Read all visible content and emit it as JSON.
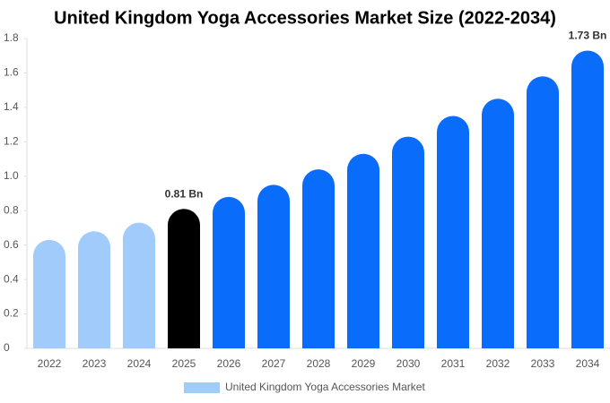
{
  "chart_data": {
    "type": "bar",
    "title": "United Kingdom Yoga Accessories Market Size (2022-2034)",
    "categories": [
      "2022",
      "2023",
      "2024",
      "2025",
      "2026",
      "2027",
      "2028",
      "2029",
      "2030",
      "2031",
      "2032",
      "2033",
      "2034"
    ],
    "series": [
      {
        "name": "United Kingdom Yoga Accessories Market",
        "color": "#a0cbfb",
        "values": [
          0.63,
          0.68,
          0.73,
          0.81,
          0.88,
          0.95,
          1.04,
          1.13,
          1.23,
          1.35,
          1.45,
          1.58,
          1.73
        ],
        "value_labels": [
          null,
          null,
          null,
          "0.81 Bn",
          null,
          null,
          null,
          null,
          null,
          null,
          null,
          null,
          "1.73 Bn"
        ],
        "colors": [
          "#a0cbfb",
          "#a0cbfb",
          "#a0cbfb",
          "#000000",
          "#0a6cfb",
          "#0a6cfb",
          "#0a6cfb",
          "#0a6cfb",
          "#0a6cfb",
          "#0a6cfb",
          "#0a6cfb",
          "#0a6cfb",
          "#0a6cfb"
        ]
      }
    ],
    "ylim": [
      0,
      1.8
    ],
    "yticks": [
      0,
      0.2,
      0.4,
      0.6,
      0.8,
      {
        "value": 1,
        "label": "1.0"
      },
      1.2,
      1.4,
      1.6,
      1.8
    ],
    "grid": false,
    "legend": "bottom"
  }
}
